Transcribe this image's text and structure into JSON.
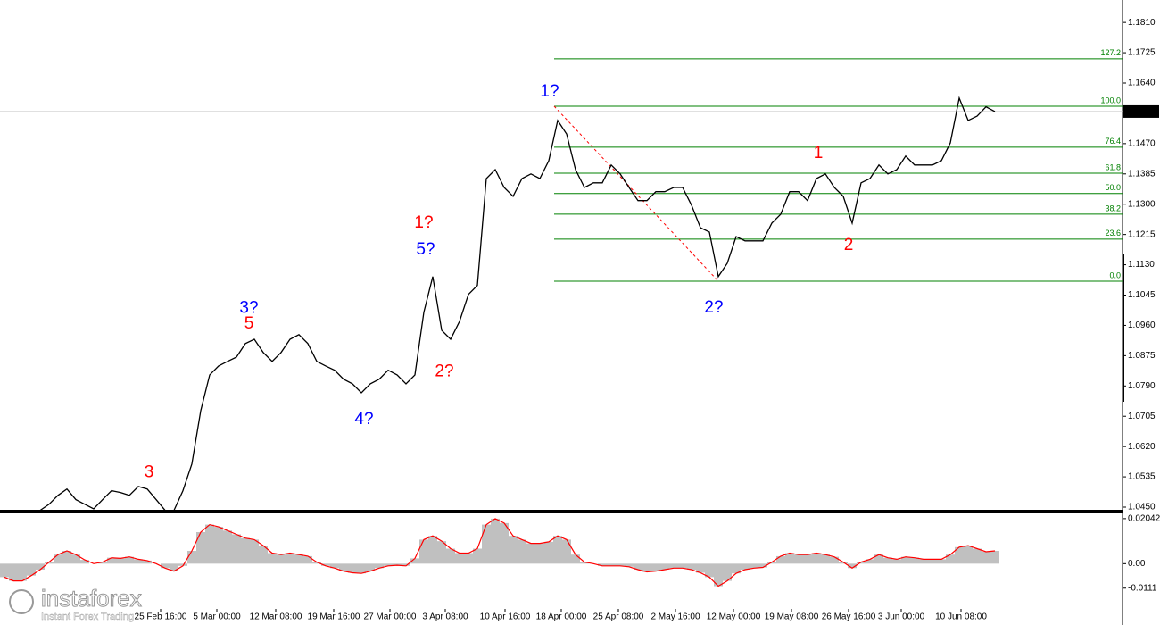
{
  "chart_data": [
    {
      "type": "line",
      "color": "#000000",
      "xlim": [
        -0.5,
        125.3
      ],
      "ylim": [
        1.044,
        1.1873
      ],
      "yticks": [
        {
          "value": 1.181,
          "label": "1.1810"
        },
        {
          "value": 1.1725,
          "label": "1.1725"
        },
        {
          "value": 1.164,
          "label": "1.1640"
        },
        {
          "value": 1.147,
          "label": "1.1470"
        },
        {
          "value": 1.1385,
          "label": "1.1385"
        },
        {
          "value": 1.13,
          "label": "1.1300"
        },
        {
          "value": 1.1215,
          "label": "1.1215"
        },
        {
          "value": 1.113,
          "label": "1.1130"
        },
        {
          "value": 1.1045,
          "label": "1.1045"
        },
        {
          "value": 1.096,
          "label": "1.0960"
        },
        {
          "value": 1.0875,
          "label": "1.0875"
        },
        {
          "value": 1.079,
          "label": "1.0790"
        },
        {
          "value": 1.0705,
          "label": "1.0705"
        },
        {
          "value": 1.062,
          "label": "1.0620"
        },
        {
          "value": 1.0535,
          "label": "1.0535"
        },
        {
          "value": 1.045,
          "label": "1.0450"
        }
      ],
      "values": [
        1.0441,
        1.0441,
        1.0441,
        1.0441,
        1.0441,
        1.0458,
        1.0483,
        1.0501,
        1.0471,
        1.0458,
        1.0445,
        1.0471,
        1.0496,
        1.0491,
        1.0483,
        1.0508,
        1.0501,
        1.0471,
        1.0441,
        1.0441,
        1.0496,
        1.0571,
        1.0721,
        1.0821,
        1.0846,
        1.0859,
        1.0871,
        1.0909,
        1.0921,
        1.0884,
        1.0859,
        1.0884,
        1.0921,
        1.0934,
        1.0909,
        1.0859,
        1.0846,
        1.0834,
        1.0809,
        1.0796,
        1.0771,
        1.0796,
        1.0809,
        1.0834,
        1.0821,
        1.0796,
        1.0821,
        1.0997,
        1.1097,
        1.0946,
        1.0921,
        1.0971,
        1.1047,
        1.1072,
        1.1372,
        1.1397,
        1.1347,
        1.1322,
        1.1372,
        1.1385,
        1.1372,
        1.1422,
        1.1535,
        1.1497,
        1.1397,
        1.1347,
        1.136,
        1.136,
        1.141,
        1.1385,
        1.1347,
        1.131,
        1.131,
        1.1335,
        1.1335,
        1.1347,
        1.1347,
        1.1297,
        1.1234,
        1.1222,
        1.1097,
        1.1134,
        1.1209,
        1.1197,
        1.1197,
        1.1197,
        1.1247,
        1.1272,
        1.1335,
        1.1335,
        1.131,
        1.1372,
        1.1385,
        1.1347,
        1.1322,
        1.1247,
        1.136,
        1.1372,
        1.141,
        1.1385,
        1.1397,
        1.1435,
        1.141,
        1.141,
        1.141,
        1.1422,
        1.1472,
        1.1598,
        1.1535,
        1.1547,
        1.1573,
        1.156
      ],
      "current_price": {
        "value": 1.156,
        "label": "1.1560"
      },
      "fib_x": 61.6,
      "fib_color": "#008000",
      "fib_levels": [
        {
          "value": 1.1708,
          "label": "127.2"
        },
        {
          "value": 1.1575,
          "label": "100.0"
        },
        {
          "value": 1.146,
          "label": "76.4"
        },
        {
          "value": 1.1387,
          "label": "61.8"
        },
        {
          "value": 1.133,
          "label": "50.0"
        },
        {
          "value": 1.1272,
          "label": "38.2"
        },
        {
          "value": 1.1202,
          "label": "23.6"
        },
        {
          "value": 1.1084,
          "label": "0.0"
        }
      ],
      "trendline": {
        "x": [
          61.6,
          80
        ],
        "values": [
          1.1575,
          1.1084
        ],
        "color": "#ff0000"
      },
      "annotations": [
        {
          "text": "1?",
          "color": "#0000ff",
          "x": 61.1,
          "y": 1.1615
        },
        {
          "text": "2?",
          "color": "#0000ff",
          "x": 79.5,
          "y": 1.1009
        },
        {
          "text": "1",
          "color": "#ff0000",
          "x": 91.2,
          "y": 1.1442
        },
        {
          "text": "2",
          "color": "#ff0000",
          "x": 94.6,
          "y": 1.1184
        },
        {
          "text": "1?",
          "color": "#ff0000",
          "x": 47,
          "y": 1.1247
        },
        {
          "text": "5?",
          "color": "#0000ff",
          "x": 47.2,
          "y": 1.1172
        },
        {
          "text": "2?",
          "color": "#ff0000",
          "x": 49.3,
          "y": 1.0829
        },
        {
          "text": "3?",
          "color": "#0000ff",
          "x": 27.4,
          "y": 1.1007
        },
        {
          "text": "5",
          "color": "#ff0000",
          "x": 27.4,
          "y": 1.0964
        },
        {
          "text": "4?",
          "color": "#0000ff",
          "x": 40.3,
          "y": 1.0696
        },
        {
          "text": "3",
          "color": "#ff0000",
          "x": 16.2,
          "y": 1.0546
        }
      ]
    },
    {
      "type": "histogram",
      "color": "#c0c0c0",
      "line_color": "#ff0000",
      "xlim": [
        -0.5,
        125.3
      ],
      "ylim": [
        -0.0197,
        0.0228
      ],
      "yticks": [
        0.02042,
        {
          "value": 0,
          "label": "0.00"
        },
        -0.0111
      ],
      "xticks": [
        {
          "value": 17.5,
          "label": "25 Feb 16:00"
        },
        {
          "value": 23.8,
          "label": "5 Mar 00:00"
        },
        {
          "value": 30.4,
          "label": "12 Mar 08:00"
        },
        {
          "value": 36.9,
          "label": "19 Mar 16:00"
        },
        {
          "value": 43.2,
          "label": "27 Mar 00:00"
        },
        {
          "value": 49.4,
          "label": "3 Apr 08:00"
        },
        {
          "value": 56.1,
          "label": "10 Apr 16:00"
        },
        {
          "value": 62.4,
          "label": "18 Apr 00:00"
        },
        {
          "value": 68.8,
          "label": "25 Apr 08:00"
        },
        {
          "value": 75.2,
          "label": "2 May 16:00"
        },
        {
          "value": 81.7,
          "label": "12 May 00:00"
        },
        {
          "value": 88.2,
          "label": "19 May 08:00"
        },
        {
          "value": 94.6,
          "label": "26 May 16:00"
        },
        {
          "value": 100.5,
          "label": "3 Jun 00:00"
        },
        {
          "value": 107.2,
          "label": "10 Jun 08:00"
        }
      ],
      "values": [
        -0.0061,
        -0.0078,
        -0.0078,
        -0.0054,
        -0.0027,
        0.0007,
        0.0041,
        0.0058,
        0.0041,
        0.0017,
        0,
        0.0007,
        0.0027,
        0.0024,
        0.0031,
        0.002,
        0.0014,
        0,
        -0.002,
        -0.0034,
        -0.001,
        0.0058,
        0.0143,
        0.0177,
        0.0167,
        0.015,
        0.0133,
        0.0116,
        0.0109,
        0.0082,
        0.0048,
        0.0041,
        0.0048,
        0.0041,
        0.0034,
        0.0007,
        -0.001,
        -0.002,
        -0.0034,
        -0.0041,
        -0.0044,
        -0.0034,
        -0.002,
        -0.001,
        -0.0007,
        -0.001,
        0.0024,
        0.0109,
        0.0126,
        0.0102,
        0.0068,
        0.0048,
        0.0048,
        0.0068,
        0.0177,
        0.0204,
        0.0184,
        0.0126,
        0.0109,
        0.0092,
        0.0092,
        0.0099,
        0.0126,
        0.0109,
        0.0041,
        0.0007,
        0,
        -0.001,
        -0.001,
        -0.001,
        -0.0014,
        -0.0027,
        -0.0037,
        -0.0034,
        -0.0027,
        -0.002,
        -0.002,
        -0.0027,
        -0.0041,
        -0.0061,
        -0.0102,
        -0.0078,
        -0.0044,
        -0.0027,
        -0.002,
        -0.0017,
        0.0007,
        0.0034,
        0.0048,
        0.0041,
        0.0041,
        0.0048,
        0.0041,
        0.0031,
        0.0007,
        -0.002,
        0.0007,
        0.002,
        0.0041,
        0.0027,
        0.002,
        0.0031,
        0.0027,
        0.002,
        0.002,
        0.002,
        0.0041,
        0.0075,
        0.0082,
        0.0068,
        0.0054,
        0.0058
      ]
    }
  ],
  "watermark": {
    "name": "instaforex",
    "tagline": "Instant Forex Trading"
  }
}
